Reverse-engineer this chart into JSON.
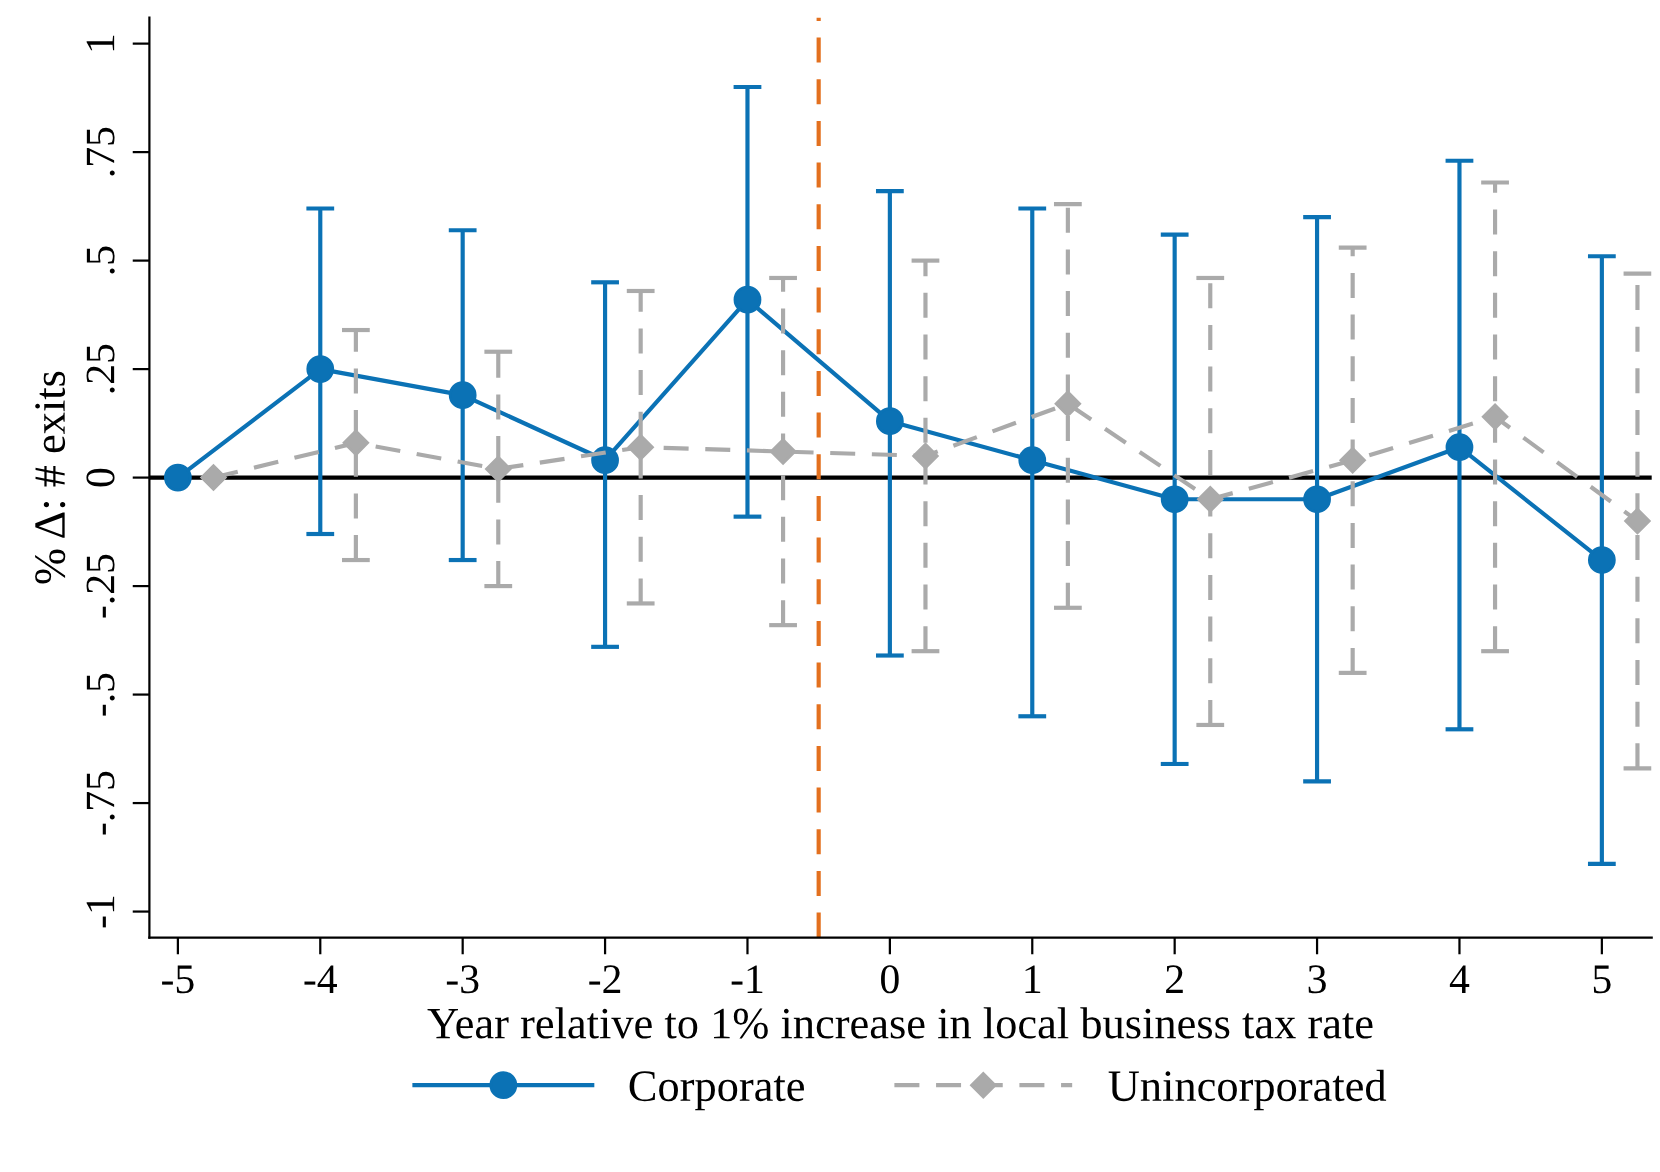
{
  "chart_data": {
    "type": "line",
    "xlabel": "Year relative to 1% increase in local business tax rate",
    "ylabel": "% Δ: # exits",
    "xlim": [
      -5.2,
      5.35
    ],
    "xticks": [
      -5,
      -4,
      -3,
      -2,
      -1,
      0,
      1,
      2,
      3,
      4,
      5
    ],
    "ylim": [
      -1.06,
      1.06
    ],
    "yticks": [
      {
        "value": -1,
        "label": "-1"
      },
      {
        "value": -0.75,
        "label": "-.75"
      },
      {
        "value": -0.5,
        "label": "-.5"
      },
      {
        "value": -0.25,
        "label": "-.25"
      },
      {
        "value": 0,
        "label": "0"
      },
      {
        "value": 0.25,
        "label": ".25"
      },
      {
        "value": 0.5,
        "label": ".5"
      },
      {
        "value": 0.75,
        "label": ".75"
      },
      {
        "value": 1,
        "label": "1"
      }
    ],
    "grid": false,
    "legend": "bottom",
    "series": [
      {
        "name": "Corporate",
        "color": "#0b72b5",
        "marker": "circle",
        "line_style": "solid",
        "x": [
          -5,
          -4,
          -3,
          -2,
          -1,
          0,
          1,
          2,
          3,
          4,
          5
        ],
        "values": [
          0,
          0.25,
          0.19,
          0.04,
          0.41,
          0.13,
          0.04,
          -0.05,
          -0.05,
          0.07,
          -0.19
        ],
        "errors": [
          null,
          [
            -0.13,
            0.62
          ],
          [
            -0.19,
            0.57
          ],
          [
            -0.39,
            0.45
          ],
          [
            -0.09,
            0.9
          ],
          [
            -0.41,
            0.66
          ],
          [
            -0.55,
            0.62
          ],
          [
            -0.66,
            0.56
          ],
          [
            -0.7,
            0.6
          ],
          [
            -0.58,
            0.73
          ],
          [
            -0.89,
            0.51
          ]
        ]
      },
      {
        "name": "Unincorporated",
        "color": "#aaaaaa",
        "marker": "diamond",
        "line_style": "dashed",
        "x": [
          -4.75,
          -3.75,
          -2.75,
          -1.75,
          -0.75,
          0.25,
          1.25,
          2.25,
          3.25,
          4.25,
          5.25
        ],
        "values": [
          0,
          0.08,
          0.02,
          0.07,
          0.06,
          0.05,
          0.17,
          -0.05,
          0.04,
          0.14,
          -0.1
        ],
        "errors": [
          null,
          [
            -0.19,
            0.34
          ],
          [
            -0.25,
            0.29
          ],
          [
            -0.29,
            0.43
          ],
          [
            -0.34,
            0.46
          ],
          [
            -0.4,
            0.5
          ],
          [
            -0.3,
            0.63
          ],
          [
            -0.57,
            0.46
          ],
          [
            -0.45,
            0.53
          ],
          [
            -0.4,
            0.68
          ],
          [
            -0.67,
            0.47
          ]
        ]
      }
    ],
    "ref_lines": [
      {
        "axis": "y",
        "value": 0,
        "color": "#000000",
        "line_style": "solid"
      },
      {
        "axis": "x",
        "value": -0.5,
        "color": "#e3701e",
        "line_style": "dashed"
      }
    ]
  }
}
